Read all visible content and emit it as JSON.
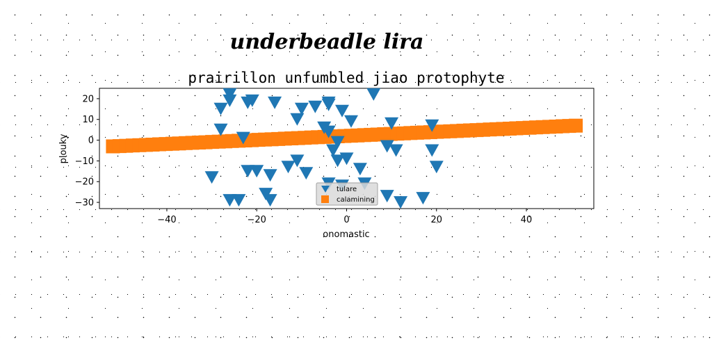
{
  "figure": {
    "suptitle": "underbeadle lira"
  },
  "chart_data": {
    "type": "scatter",
    "title": "prairillon unfumbled jiao protophyte",
    "xlabel": "onomastic",
    "ylabel": "plouky",
    "xlim": [
      -55,
      55
    ],
    "ylim": [
      -33,
      25
    ],
    "xticks": [
      -40,
      -20,
      0,
      20,
      40
    ],
    "yticks": [
      20,
      10,
      0,
      -10,
      -20,
      -30
    ],
    "grid": false,
    "legend_position": "lower center",
    "series": [
      {
        "name": "tulare",
        "marker": "triangle-down",
        "color": "#1f77b4",
        "points": [
          [
            -26,
            22
          ],
          [
            -26,
            19
          ],
          [
            -21,
            19
          ],
          [
            -22,
            18
          ],
          [
            -16,
            18
          ],
          [
            -28,
            15
          ],
          [
            -10,
            15
          ],
          [
            -7,
            16
          ],
          [
            -4,
            18
          ],
          [
            -4,
            17
          ],
          [
            -1,
            14
          ],
          [
            6,
            22
          ],
          [
            -11,
            10
          ],
          [
            -5,
            6
          ],
          [
            -4,
            4
          ],
          [
            1,
            9
          ],
          [
            10,
            8
          ],
          [
            19,
            7
          ],
          [
            -28,
            5
          ],
          [
            -23,
            1
          ],
          [
            -2,
            -1
          ],
          [
            -3,
            -5
          ],
          [
            9,
            -3
          ],
          [
            11,
            -5
          ],
          [
            19,
            -5
          ],
          [
            -2,
            -10
          ],
          [
            0,
            -9
          ],
          [
            3,
            -14
          ],
          [
            -11,
            -10
          ],
          [
            -13,
            -13
          ],
          [
            -20,
            -15
          ],
          [
            -17,
            -17
          ],
          [
            -22,
            -15
          ],
          [
            -30,
            -18
          ],
          [
            20,
            -13
          ],
          [
            -9,
            -16
          ],
          [
            -4,
            -21
          ],
          [
            -1,
            -22
          ],
          [
            4,
            -21
          ],
          [
            -18,
            -26
          ],
          [
            -24,
            -29
          ],
          [
            -26,
            -29
          ],
          [
            -17,
            -29
          ],
          [
            9,
            -27
          ],
          [
            12,
            -30
          ],
          [
            17,
            -28
          ]
        ]
      },
      {
        "name": "calamining",
        "marker": "square",
        "color": "#ff7f0e",
        "line_start": [
          -52,
          -3
        ],
        "line_end": [
          51,
          7
        ]
      }
    ]
  }
}
